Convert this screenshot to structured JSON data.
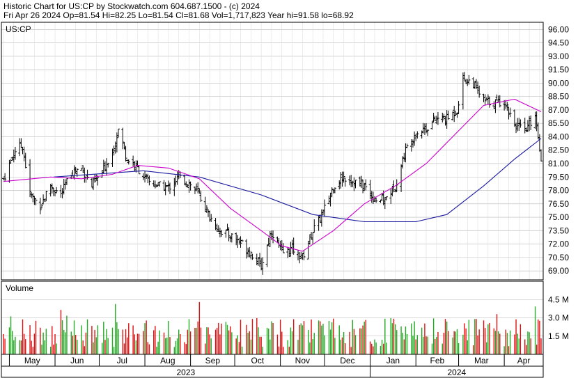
{
  "header": {
    "line1": "Historic Chart for US:CP by Stockwatch.com 604.687.1500 - (c) 2024",
    "line2": "Fri Apr 26 2024   Op=81.54   Hi=82.25   Lo=81.54   Cl=81.68   Vol=1,717,823   Year hi=91.58   lo=68.92"
  },
  "price_panel_label": "US:CP",
  "volume_panel_label": "Volume",
  "price_ticks": [
    "96.00",
    "94.50",
    "93.00",
    "91.50",
    "90.00",
    "88.50",
    "87.00",
    "85.50",
    "84.00",
    "82.50",
    "81.00",
    "79.50",
    "78.00",
    "76.50",
    "75.00",
    "73.50",
    "72.00",
    "70.50",
    "69.00"
  ],
  "volume_ticks": [
    "4.5 M",
    "3.0 M",
    "1.5 M"
  ],
  "month_labels": [
    "May",
    "Jun",
    "Jul",
    "Aug",
    "Sep",
    "Oct",
    "Nov",
    "Dec",
    "Jan",
    "Feb",
    "Mar",
    "Apr"
  ],
  "year_labels": [
    "2023",
    "2024"
  ],
  "colors": {
    "bar": "#000000",
    "volume_up": "#22aa22",
    "volume_down": "#dd1111",
    "ma_short": "#cc00cc",
    "ma_long": "#1a1aa0",
    "grid": "#b8b8b8",
    "frame": "#000000"
  },
  "chart_data": {
    "type": "ohlc",
    "title": "Historic Chart for US:CP",
    "ylim": [
      68,
      96.8
    ],
    "volume_ylim": [
      0,
      6.0
    ],
    "date_range": [
      "2023-04-27",
      "2024-04-26"
    ],
    "grid": true,
    "moving_averages": [
      "short (magenta)",
      "long (blue)"
    ],
    "close_series": [
      {
        "date": "2023-04-27",
        "close": 79.3
      },
      {
        "date": "2023-05-05",
        "close": 82.5
      },
      {
        "date": "2023-05-10",
        "close": 83.0
      },
      {
        "date": "2023-05-15",
        "close": 77.5
      },
      {
        "date": "2023-05-22",
        "close": 76.3
      },
      {
        "date": "2023-05-29",
        "close": 78.5
      },
      {
        "date": "2023-06-05",
        "close": 77.5
      },
      {
        "date": "2023-06-12",
        "close": 80.0
      },
      {
        "date": "2023-06-19",
        "close": 80.5
      },
      {
        "date": "2023-06-26",
        "close": 78.5
      },
      {
        "date": "2023-07-03",
        "close": 80.0
      },
      {
        "date": "2023-07-10",
        "close": 82.5
      },
      {
        "date": "2023-07-14",
        "close": 84.8
      },
      {
        "date": "2023-07-20",
        "close": 81.5
      },
      {
        "date": "2023-07-27",
        "close": 80.5
      },
      {
        "date": "2023-08-03",
        "close": 79.0
      },
      {
        "date": "2023-08-10",
        "close": 78.5
      },
      {
        "date": "2023-08-17",
        "close": 78.3
      },
      {
        "date": "2023-08-24",
        "close": 79.5
      },
      {
        "date": "2023-08-31",
        "close": 78.8
      },
      {
        "date": "2023-09-07",
        "close": 77.5
      },
      {
        "date": "2023-09-14",
        "close": 75.0
      },
      {
        "date": "2023-09-21",
        "close": 73.5
      },
      {
        "date": "2023-09-28",
        "close": 73.0
      },
      {
        "date": "2023-10-05",
        "close": 72.2
      },
      {
        "date": "2023-10-12",
        "close": 71.0
      },
      {
        "date": "2023-10-19",
        "close": 69.5
      },
      {
        "date": "2023-10-26",
        "close": 73.5
      },
      {
        "date": "2023-11-02",
        "close": 71.0
      },
      {
        "date": "2023-11-09",
        "close": 71.5
      },
      {
        "date": "2023-11-16",
        "close": 70.5
      },
      {
        "date": "2023-11-23",
        "close": 73.5
      },
      {
        "date": "2023-11-30",
        "close": 75.5
      },
      {
        "date": "2023-12-07",
        "close": 78.5
      },
      {
        "date": "2023-12-14",
        "close": 79.5
      },
      {
        "date": "2023-12-21",
        "close": 79.0
      },
      {
        "date": "2023-12-28",
        "close": 78.5
      },
      {
        "date": "2024-01-04",
        "close": 77.0
      },
      {
        "date": "2024-01-11",
        "close": 77.0
      },
      {
        "date": "2024-01-18",
        "close": 78.5
      },
      {
        "date": "2024-01-25",
        "close": 82.5
      },
      {
        "date": "2024-02-01",
        "close": 84.5
      },
      {
        "date": "2024-02-08",
        "close": 85.0
      },
      {
        "date": "2024-02-15",
        "close": 86.0
      },
      {
        "date": "2024-02-22",
        "close": 86.0
      },
      {
        "date": "2024-02-29",
        "close": 87.0
      },
      {
        "date": "2024-03-04",
        "close": 90.5
      },
      {
        "date": "2024-03-11",
        "close": 90.0
      },
      {
        "date": "2024-03-18",
        "close": 88.0
      },
      {
        "date": "2024-03-25",
        "close": 87.8
      },
      {
        "date": "2024-04-01",
        "close": 88.0
      },
      {
        "date": "2024-04-08",
        "close": 85.5
      },
      {
        "date": "2024-04-15",
        "close": 84.5
      },
      {
        "date": "2024-04-22",
        "close": 86.5
      },
      {
        "date": "2024-04-26",
        "close": 81.7
      }
    ],
    "ma_short_series": [
      {
        "date": "2023-04-27",
        "value": 79.0
      },
      {
        "date": "2023-05-29",
        "value": 79.5
      },
      {
        "date": "2023-06-19",
        "value": 79.3
      },
      {
        "date": "2023-07-10",
        "value": 79.8
      },
      {
        "date": "2023-07-27",
        "value": 80.8
      },
      {
        "date": "2023-08-17",
        "value": 80.5
      },
      {
        "date": "2023-09-07",
        "value": 79.3
      },
      {
        "date": "2023-09-28",
        "value": 76.0
      },
      {
        "date": "2023-10-19",
        "value": 73.5
      },
      {
        "date": "2023-11-02",
        "value": 71.8
      },
      {
        "date": "2023-11-16",
        "value": 71.2
      },
      {
        "date": "2023-12-07",
        "value": 73.5
      },
      {
        "date": "2023-12-28",
        "value": 76.5
      },
      {
        "date": "2024-01-18",
        "value": 78.5
      },
      {
        "date": "2024-02-08",
        "value": 81.0
      },
      {
        "date": "2024-02-29",
        "value": 84.5
      },
      {
        "date": "2024-03-18",
        "value": 87.5
      },
      {
        "date": "2024-04-08",
        "value": 88.2
      },
      {
        "date": "2024-04-26",
        "value": 86.8
      }
    ],
    "ma_long_series": [
      {
        "date": "2023-05-31",
        "value": 79.5
      },
      {
        "date": "2023-07-31",
        "value": 80.2
      },
      {
        "date": "2023-09-07",
        "value": 79.5
      },
      {
        "date": "2023-10-19",
        "value": 77.5
      },
      {
        "date": "2023-11-23",
        "value": 75.3
      },
      {
        "date": "2023-12-28",
        "value": 74.5
      },
      {
        "date": "2024-02-01",
        "value": 74.5
      },
      {
        "date": "2024-02-22",
        "value": 75.3
      },
      {
        "date": "2024-03-18",
        "value": 78.5
      },
      {
        "date": "2024-04-08",
        "value": 81.5
      },
      {
        "date": "2024-04-26",
        "value": 83.8
      }
    ]
  }
}
